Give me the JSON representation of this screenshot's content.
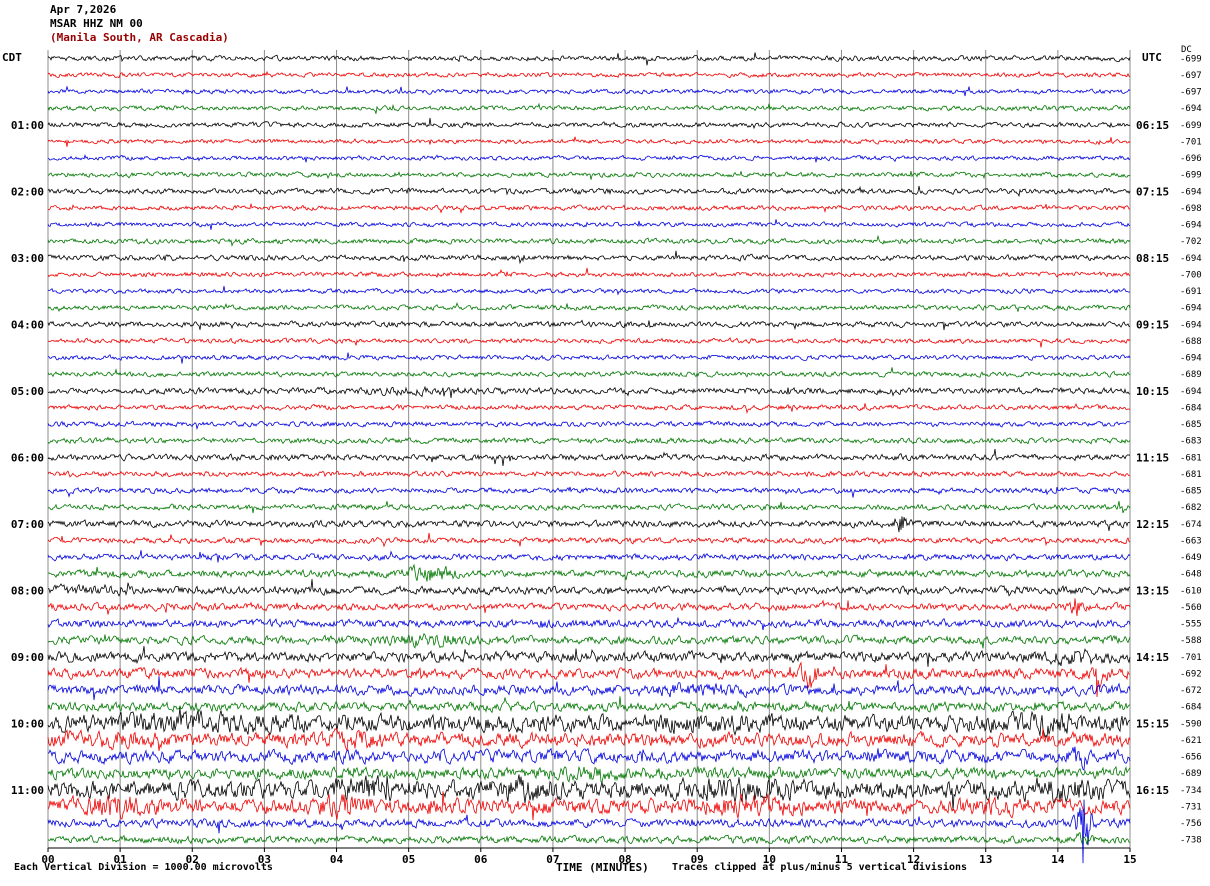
{
  "header": {
    "date": "Apr 7,2026",
    "station": "MSAR HHZ NM 00",
    "location": "(Manila South, AR Cascadia)"
  },
  "corner": {
    "left_tz": "CDT",
    "right_tz": "UTC",
    "dc_header": "DC"
  },
  "x_axis": {
    "ticks": [
      "00",
      "01",
      "02",
      "03",
      "04",
      "05",
      "06",
      "07",
      "08",
      "09",
      "10",
      "11",
      "12",
      "13",
      "14",
      "15"
    ],
    "title": "TIME (MINUTES)"
  },
  "footer": {
    "left": "Each Vertical Division = 1000.00 microvolts",
    "right": "Traces clipped at plus/minus 5 vertical divisions"
  },
  "palette": {
    "trace_cycle": [
      "#000000",
      "#ee0000",
      "#0000dd",
      "#007700"
    ],
    "grid": "#8c8c8c",
    "axis": "#000000",
    "location_text": "#990000",
    "text": "#000000"
  },
  "chart_data": {
    "type": "line",
    "subtype": "helicorder-seismogram",
    "title": "MSAR HHZ NM 00 — Apr 7,2026",
    "xlabel": "TIME (MINUTES)",
    "x_range_minutes": [
      0,
      15
    ],
    "minutes_per_row": 15,
    "rows_count": 48,
    "color_cycle_order": [
      "black",
      "red",
      "blue",
      "green"
    ],
    "left_time_labels": [
      {
        "row": 4,
        "label": "01:00"
      },
      {
        "row": 8,
        "label": "02:00"
      },
      {
        "row": 12,
        "label": "03:00"
      },
      {
        "row": 16,
        "label": "04:00"
      },
      {
        "row": 20,
        "label": "05:00"
      },
      {
        "row": 24,
        "label": "06:00"
      },
      {
        "row": 28,
        "label": "07:00"
      },
      {
        "row": 32,
        "label": "08:00"
      },
      {
        "row": 36,
        "label": "09:00"
      },
      {
        "row": 40,
        "label": "10:00"
      },
      {
        "row": 44,
        "label": "11:00"
      }
    ],
    "right_time_labels": [
      {
        "row": 4,
        "label": "06:15"
      },
      {
        "row": 8,
        "label": "07:15"
      },
      {
        "row": 12,
        "label": "08:15"
      },
      {
        "row": 16,
        "label": "09:15"
      },
      {
        "row": 20,
        "label": "10:15"
      },
      {
        "row": 24,
        "label": "11:15"
      },
      {
        "row": 28,
        "label": "12:15"
      },
      {
        "row": 32,
        "label": "13:15"
      },
      {
        "row": 36,
        "label": "14:15"
      },
      {
        "row": 40,
        "label": "15:15"
      },
      {
        "row": 44,
        "label": "16:15"
      }
    ],
    "rows": [
      {
        "dc": -699,
        "amp": 1.8,
        "bursts": []
      },
      {
        "dc": -697,
        "amp": 1.6,
        "bursts": []
      },
      {
        "dc": -697,
        "amp": 1.6,
        "bursts": []
      },
      {
        "dc": -694,
        "amp": 1.7,
        "bursts": []
      },
      {
        "dc": -699,
        "amp": 1.8,
        "bursts": []
      },
      {
        "dc": -701,
        "amp": 1.6,
        "bursts": []
      },
      {
        "dc": -696,
        "amp": 1.6,
        "bursts": []
      },
      {
        "dc": -699,
        "amp": 1.7,
        "bursts": []
      },
      {
        "dc": -694,
        "amp": 1.9,
        "bursts": []
      },
      {
        "dc": -698,
        "amp": 1.7,
        "bursts": []
      },
      {
        "dc": -694,
        "amp": 1.6,
        "bursts": []
      },
      {
        "dc": -702,
        "amp": 1.8,
        "bursts": []
      },
      {
        "dc": -694,
        "amp": 2.0,
        "bursts": []
      },
      {
        "dc": -700,
        "amp": 1.7,
        "bursts": []
      },
      {
        "dc": -691,
        "amp": 1.6,
        "bursts": []
      },
      {
        "dc": -694,
        "amp": 1.8,
        "bursts": []
      },
      {
        "dc": -694,
        "amp": 2.0,
        "bursts": []
      },
      {
        "dc": -688,
        "amp": 1.7,
        "bursts": []
      },
      {
        "dc": -694,
        "amp": 1.7,
        "bursts": []
      },
      {
        "dc": -689,
        "amp": 1.8,
        "bursts": []
      },
      {
        "dc": -694,
        "amp": 2.2,
        "bursts": [
          [
            5.0,
            0.6,
            0.5
          ]
        ]
      },
      {
        "dc": -684,
        "amp": 1.8,
        "bursts": []
      },
      {
        "dc": -685,
        "amp": 1.8,
        "bursts": []
      },
      {
        "dc": -683,
        "amp": 1.9,
        "bursts": []
      },
      {
        "dc": -681,
        "amp": 2.2,
        "bursts": []
      },
      {
        "dc": -681,
        "amp": 1.9,
        "bursts": []
      },
      {
        "dc": -685,
        "amp": 1.9,
        "bursts": []
      },
      {
        "dc": -682,
        "amp": 2.0,
        "bursts": []
      },
      {
        "dc": -674,
        "amp": 2.4,
        "bursts": [
          [
            11.8,
            0.07,
            3.5
          ]
        ]
      },
      {
        "dc": -663,
        "amp": 2.0,
        "bursts": []
      },
      {
        "dc": -649,
        "amp": 2.2,
        "bursts": []
      },
      {
        "dc": -648,
        "amp": 2.6,
        "bursts": [
          [
            5.3,
            0.25,
            2.0
          ]
        ]
      },
      {
        "dc": -610,
        "amp": 2.8,
        "bursts": [
          [
            0.5,
            0.5,
            0.6
          ]
        ]
      },
      {
        "dc": -560,
        "amp": 2.6,
        "bursts": [
          [
            14.25,
            0.05,
            3.0
          ]
        ]
      },
      {
        "dc": -555,
        "amp": 2.8,
        "bursts": []
      },
      {
        "dc": -588,
        "amp": 3.0,
        "bursts": [
          [
            5.3,
            0.4,
            0.8
          ]
        ]
      },
      {
        "dc": -701,
        "amp": 3.6,
        "bursts": [
          [
            14.3,
            0.3,
            1.0
          ]
        ]
      },
      {
        "dc": -692,
        "amp": 3.6,
        "bursts": [
          [
            10.55,
            0.07,
            3.0
          ],
          [
            14.6,
            0.1,
            1.2
          ]
        ]
      },
      {
        "dc": -672,
        "amp": 3.6,
        "bursts": [
          [
            9.0,
            0.5,
            0.6
          ]
        ]
      },
      {
        "dc": -684,
        "amp": 3.4,
        "bursts": []
      },
      {
        "dc": -590,
        "amp": 6.0,
        "bursts": [
          [
            2.0,
            0.8,
            0.4
          ],
          [
            9.3,
            0.5,
            0.4
          ],
          [
            13.8,
            0.4,
            0.5
          ]
        ]
      },
      {
        "dc": -621,
        "amp": 5.0,
        "bursts": [
          [
            0.9,
            0.4,
            0.6
          ],
          [
            4.2,
            0.3,
            0.5
          ]
        ]
      },
      {
        "dc": -656,
        "amp": 4.5,
        "bursts": [
          [
            14.3,
            0.1,
            1.2
          ]
        ]
      },
      {
        "dc": -689,
        "amp": 4.0,
        "bursts": [
          [
            7.5,
            0.4,
            0.5
          ]
        ]
      },
      {
        "dc": -734,
        "amp": 6.5,
        "bursts": [
          [
            4.4,
            0.3,
            0.6
          ],
          [
            6.6,
            0.3,
            0.6
          ],
          [
            9.6,
            0.5,
            0.5
          ],
          [
            14.0,
            0.3,
            0.6
          ]
        ]
      },
      {
        "dc": -731,
        "amp": 5.5,
        "bursts": [
          [
            0.9,
            0.3,
            0.8
          ],
          [
            4.1,
            0.25,
            0.7
          ],
          [
            9.7,
            0.4,
            0.7
          ],
          [
            13.2,
            0.2,
            0.6
          ]
        ]
      },
      {
        "dc": -756,
        "amp": 3.0,
        "bursts": [
          [
            14.35,
            0.06,
            13.0
          ]
        ]
      },
      {
        "dc": -738,
        "amp": 2.6,
        "bursts": [
          [
            14.35,
            0.08,
            1.5
          ]
        ]
      }
    ]
  }
}
